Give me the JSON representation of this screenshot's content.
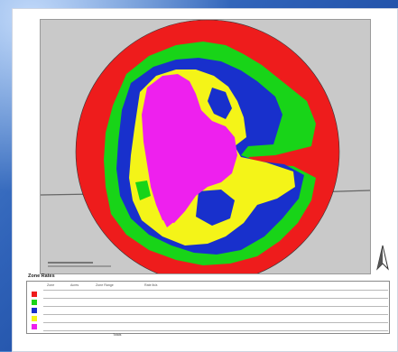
{
  "legend": {
    "title": "Zone Rates",
    "columns": [
      "Zone",
      "Acres",
      "Zone Range",
      "Rate lb/a"
    ],
    "rows": [
      {
        "color": "#ee1c1c"
      },
      {
        "color": "#18d418"
      },
      {
        "color": "#1830cc"
      },
      {
        "color": "#f4f418"
      },
      {
        "color": "#ee20ee"
      }
    ],
    "total_label": "Totals"
  },
  "map": {
    "background_color": "#c9c9c9",
    "zone_colors": [
      "#ee1c1c",
      "#18d418",
      "#1830cc",
      "#f4f418",
      "#ee20ee"
    ],
    "north_arrow_icon": "north-arrow-icon"
  }
}
